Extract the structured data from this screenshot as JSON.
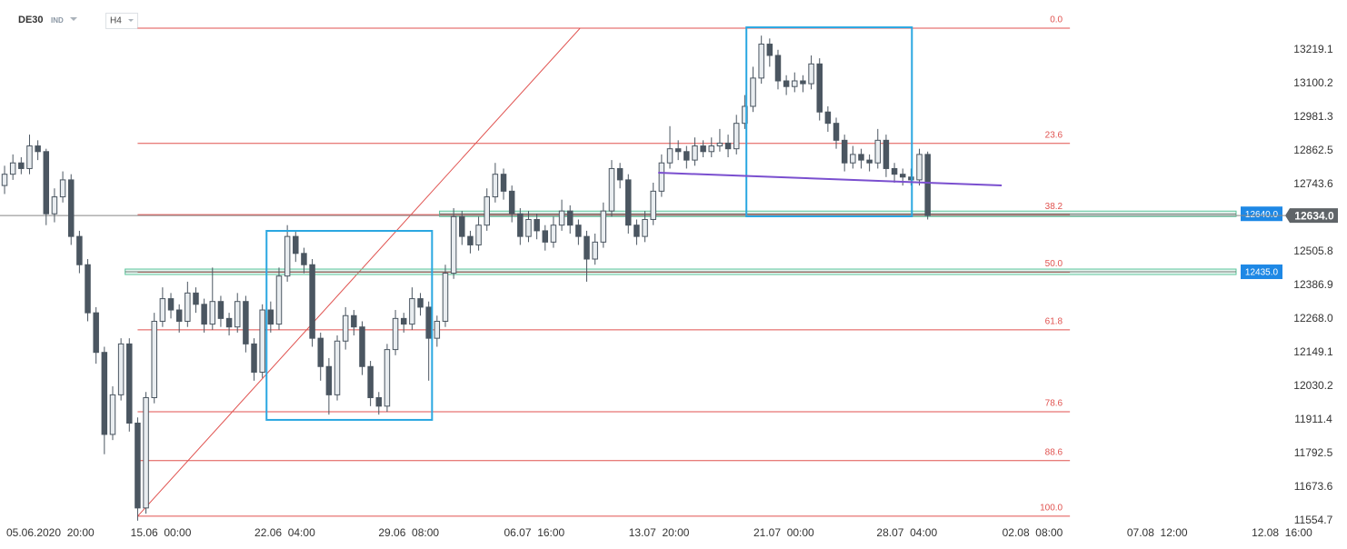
{
  "chart_data": {
    "type": "candlestick",
    "symbol": "DE30",
    "symbol_type": "IND",
    "interval": "H4",
    "xlim": [
      -0.55,
      161.2
    ],
    "ylim": [
      11532,
      13396
    ],
    "xticks": [
      {
        "value": 5.5,
        "label": "05.06.2020  20:00"
      },
      {
        "value": 18.8,
        "label": "15.06  00:00"
      },
      {
        "value": 33.7,
        "label": "22.06  04:00"
      },
      {
        "value": 48.6,
        "label": "29.06  08:00"
      },
      {
        "value": 63.7,
        "label": "06.07  16:00"
      },
      {
        "value": 78.7,
        "label": "13.07  20:00"
      },
      {
        "value": 93.7,
        "label": "21.07  00:00"
      },
      {
        "value": 108.5,
        "label": "28.07  04:00"
      },
      {
        "value": 123.6,
        "label": "02.08  08:00"
      },
      {
        "value": 138.6,
        "label": "07.08  12:00"
      },
      {
        "value": 153.6,
        "label": "12.08  16:00"
      }
    ],
    "yticks": [
      13219.1,
      13100.2,
      12981.3,
      12862.5,
      12743.6,
      12505.8,
      12386.9,
      {
        "value": 12268.0,
        "label": "12268.0"
      },
      12149.1,
      12030.2,
      11911.4,
      11792.5,
      11673.6,
      11554.7
    ],
    "up_color": "#e9edf0",
    "down_color": "#4b5661",
    "open": [
      12740,
      12780,
      12820,
      12800,
      12880,
      12860,
      12640,
      12700,
      12760,
      12560,
      12460,
      12290,
      12150,
      11860,
      12000,
      12180,
      11900,
      11600,
      11990,
      12260,
      12340,
      12300,
      12260,
      12360,
      12320,
      12250,
      12330,
      12270,
      12240,
      12330,
      12180,
      12080,
      12300,
      12250,
      12420,
      12560,
      12500,
      12460,
      12200,
      12100,
      12000,
      12190,
      12280,
      12240,
      12100,
      11990,
      11960,
      12160,
      12270,
      12250,
      12340,
      12310,
      12200,
      12260,
      12430,
      12630,
      12560,
      12530,
      12600,
      12700,
      12780,
      12720,
      12640,
      12560,
      12620,
      12580,
      12540,
      12600,
      12650,
      12600,
      12560,
      12480,
      12540,
      12650,
      12800,
      12760,
      12600,
      12560,
      12620,
      12720,
      12820,
      12870,
      12860,
      12830,
      12880,
      12860,
      12880,
      12890,
      12870,
      12960,
      13020,
      13120,
      13240,
      13200,
      13110,
      13090,
      13110,
      13100,
      13170,
      13000,
      12960,
      12900,
      12820,
      12850,
      12830,
      12820,
      12900,
      12800,
      12780,
      12770,
      12760,
      12850
    ],
    "high": [
      12810,
      12850,
      12840,
      12920,
      12900,
      12870,
      12730,
      12790,
      12780,
      12580,
      12480,
      12310,
      12170,
      12030,
      12200,
      12200,
      11920,
      12010,
      12290,
      12380,
      12360,
      12320,
      12400,
      12380,
      12340,
      12450,
      12350,
      12290,
      12360,
      12350,
      12200,
      12320,
      12330,
      12450,
      12600,
      12580,
      12520,
      12480,
      12220,
      12130,
      12210,
      12310,
      12300,
      12260,
      12120,
      12010,
      12180,
      12300,
      12290,
      12380,
      12360,
      12330,
      12280,
      12460,
      12660,
      12650,
      12580,
      12630,
      12730,
      12820,
      12800,
      12740,
      12660,
      12650,
      12640,
      12600,
      12630,
      12690,
      12670,
      12620,
      12580,
      12570,
      12680,
      12830,
      12820,
      12780,
      12620,
      12650,
      12750,
      12850,
      12950,
      12900,
      12880,
      12910,
      12900,
      12910,
      12940,
      12920,
      12990,
      13060,
      13160,
      13270,
      13260,
      13220,
      13130,
      13140,
      13130,
      13200,
      13190,
      13020,
      12980,
      12920,
      12880,
      12870,
      12850,
      12940,
      12920,
      12820,
      12800,
      12800,
      12870,
      12860
    ],
    "low": [
      12710,
      12760,
      12780,
      12780,
      12830,
      12600,
      12610,
      12680,
      12530,
      12430,
      12260,
      12110,
      11790,
      11840,
      11980,
      11870,
      11555,
      11580,
      11970,
      12240,
      12270,
      12220,
      12240,
      12290,
      12220,
      12230,
      12240,
      12210,
      12220,
      12150,
      12050,
      12060,
      12220,
      12230,
      12400,
      12470,
      12430,
      12170,
      12050,
      11930,
      11980,
      12160,
      12210,
      12070,
      11960,
      11930,
      11940,
      12140,
      12220,
      12230,
      12280,
      12050,
      12170,
      12240,
      12410,
      12530,
      12500,
      12510,
      12580,
      12680,
      12690,
      12610,
      12530,
      12540,
      12550,
      12510,
      12520,
      12580,
      12570,
      12530,
      12400,
      12460,
      12520,
      12630,
      12730,
      12570,
      12530,
      12540,
      12600,
      12700,
      12800,
      12830,
      12800,
      12810,
      12840,
      12840,
      12860,
      12840,
      12850,
      12940,
      13000,
      13100,
      13160,
      13080,
      13060,
      13070,
      13070,
      13080,
      12970,
      12930,
      12870,
      12790,
      12800,
      12800,
      12790,
      12800,
      12770,
      12750,
      12740,
      12740,
      12740,
      12620
    ],
    "close": [
      12780,
      12820,
      12800,
      12880,
      12860,
      12640,
      12700,
      12760,
      12560,
      12460,
      12290,
      12150,
      11860,
      12000,
      12180,
      11900,
      11600,
      11990,
      12260,
      12340,
      12300,
      12260,
      12360,
      12320,
      12250,
      12330,
      12270,
      12240,
      12330,
      12180,
      12080,
      12300,
      12250,
      12420,
      12560,
      12500,
      12460,
      12200,
      12100,
      12000,
      12190,
      12280,
      12240,
      12100,
      11990,
      11960,
      12160,
      12270,
      12250,
      12340,
      12310,
      12200,
      12260,
      12430,
      12630,
      12560,
      12530,
      12600,
      12700,
      12780,
      12720,
      12640,
      12560,
      12620,
      12580,
      12540,
      12600,
      12650,
      12600,
      12560,
      12480,
      12540,
      12650,
      12800,
      12760,
      12600,
      12560,
      12620,
      12720,
      12820,
      12870,
      12860,
      12830,
      12880,
      12860,
      12880,
      12890,
      12870,
      12960,
      13020,
      13120,
      13240,
      13200,
      13110,
      13090,
      13110,
      13100,
      13170,
      13000,
      12960,
      12900,
      12820,
      12850,
      12830,
      12820,
      12900,
      12800,
      12780,
      12770,
      12760,
      12850,
      12634
    ],
    "fibonacci": {
      "high": 13296.2,
      "low": 11570.8,
      "x_start": 16.0,
      "x_end": 128.1,
      "trend_end_x": 69.2,
      "color": "#e0524f",
      "levels": [
        {
          "value": 0,
          "label": "0.0"
        },
        23.6,
        38.2,
        {
          "value": 50,
          "label": "50.0"
        },
        61.8,
        78.6,
        88.6,
        {
          "value": 100,
          "label": "100.0"
        }
      ]
    },
    "boxes": [
      {
        "x0": 31.5,
        "x1": 51.4,
        "y0": 12579.7,
        "y1": 11911.4
      },
      {
        "x0": 89.2,
        "x1": 109.1,
        "y0": 13299.4,
        "y1": 12631.1
      }
    ],
    "box_color": "#2aa7e1",
    "trend_line": {
      "x": [
        78.6,
        119.9
      ],
      "y": [
        12785.3,
        12740.3
      ],
      "color": "#7a4fcf"
    },
    "zones": [
      {
        "price": {
          "value": 12640,
          "label": "12640.0"
        },
        "x_start": 52.3
      },
      {
        "price": {
          "value": 12435,
          "label": "12435.0"
        },
        "x_start": 14.5
      }
    ],
    "last_price": {
      "value": 12634,
      "label": "12634.0"
    }
  }
}
